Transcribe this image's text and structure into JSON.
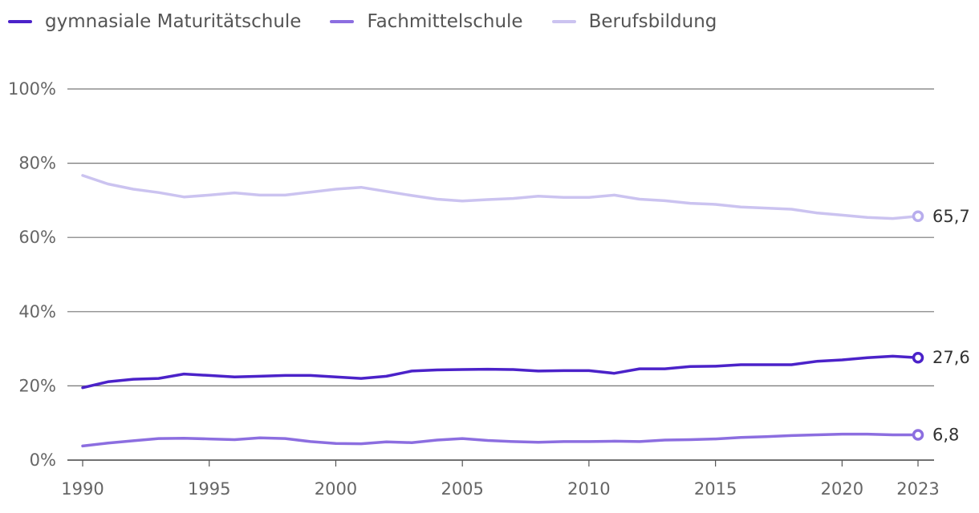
{
  "chart_data": {
    "type": "line",
    "title": "",
    "xlabel": "",
    "ylabel": "",
    "ylim": [
      0,
      100
    ],
    "yticks": [
      "0%",
      "20%",
      "40%",
      "60%",
      "80%",
      "100%"
    ],
    "ytick_values": [
      0,
      20,
      40,
      60,
      80,
      100
    ],
    "xticks": [
      "1990",
      "1995",
      "2000",
      "2005",
      "2010",
      "2015",
      "2020",
      "2023"
    ],
    "xtick_values": [
      1990,
      1995,
      2000,
      2005,
      2010,
      2015,
      2020,
      2023
    ],
    "x": [
      1990,
      1991,
      1992,
      1993,
      1994,
      1995,
      1996,
      1997,
      1998,
      1999,
      2000,
      2001,
      2002,
      2003,
      2004,
      2005,
      2006,
      2007,
      2008,
      2009,
      2010,
      2011,
      2012,
      2013,
      2014,
      2015,
      2016,
      2017,
      2018,
      2019,
      2020,
      2021,
      2022,
      2023
    ],
    "series": [
      {
        "name": "gymnasiale Maturitätschule",
        "color": "#4b22c9",
        "end_label": "27,6",
        "end_marker": "#4b22c9",
        "values": [
          19.5,
          21.1,
          21.8,
          22.0,
          23.2,
          22.8,
          22.4,
          22.6,
          22.8,
          22.8,
          22.4,
          22.0,
          22.6,
          24.0,
          24.3,
          24.4,
          24.5,
          24.4,
          24.0,
          24.1,
          24.1,
          23.4,
          24.6,
          24.6,
          25.2,
          25.3,
          25.7,
          25.7,
          25.7,
          26.6,
          27.0,
          27.6,
          28.0,
          27.6
        ]
      },
      {
        "name": "Fachmittelschule",
        "color": "#8c6ee0",
        "end_label": "6,8",
        "end_marker": "#8c6ee0",
        "values": [
          3.8,
          4.6,
          5.2,
          5.8,
          5.9,
          5.7,
          5.5,
          6.0,
          5.8,
          5.0,
          4.5,
          4.4,
          4.9,
          4.7,
          5.4,
          5.8,
          5.3,
          5.0,
          4.8,
          5.0,
          5.0,
          5.1,
          5.0,
          5.4,
          5.5,
          5.7,
          6.1,
          6.3,
          6.6,
          6.8,
          7.0,
          7.0,
          6.8,
          6.8
        ]
      },
      {
        "name": "Berufsbildung",
        "color": "#cbc3f0",
        "end_label": "65,7",
        "end_marker": "#b8aded",
        "values": [
          76.7,
          74.4,
          73.0,
          72.1,
          70.9,
          71.4,
          72.0,
          71.4,
          71.4,
          72.2,
          73.0,
          73.5,
          72.4,
          71.3,
          70.3,
          69.8,
          70.2,
          70.5,
          71.1,
          70.8,
          70.8,
          71.4,
          70.3,
          69.9,
          69.2,
          68.9,
          68.2,
          67.9,
          67.6,
          66.6,
          66.0,
          65.4,
          65.1,
          65.7
        ]
      }
    ]
  }
}
